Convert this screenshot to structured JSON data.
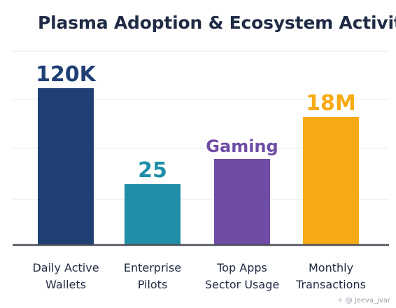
{
  "chart_data": {
    "type": "bar",
    "title": "Plasma Adoption & Ecosystem Activity",
    "xlabel": "",
    "ylabel": "",
    "grid": true,
    "legend": "none",
    "categories": [
      [
        "Daily Active",
        "Wallets"
      ],
      [
        "Enterprise",
        "Pilots"
      ],
      [
        "Top Apps",
        "Sector Usage"
      ],
      [
        "Monthly",
        "Transactions"
      ]
    ],
    "relative_heights": [
      1.0,
      0.389,
      0.549,
      0.815
    ],
    "value_labels": [
      "120K",
      "25",
      "Gaming",
      "18M"
    ],
    "colors": [
      "#1f3f75",
      "#1f8ea8",
      "#6f4da6",
      "#f7aa14"
    ],
    "ylim": [
      0,
      1
    ]
  },
  "watermark": {
    "text": "Jeeva_jvar"
  }
}
